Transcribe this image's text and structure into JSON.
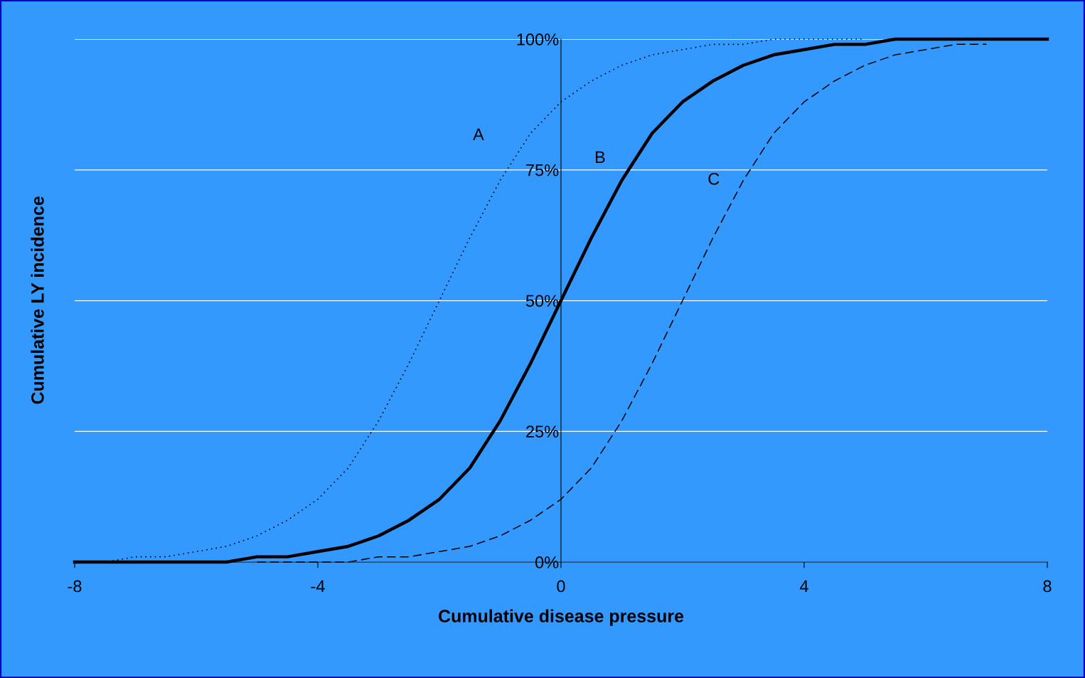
{
  "chart_data": {
    "type": "line",
    "xlabel": "Cumulative disease pressure",
    "ylabel": "Cumulative LY incidence",
    "x": [
      -8,
      -7.5,
      -7,
      -6.5,
      -6,
      -5.5,
      -5,
      -4.5,
      -4,
      -3.5,
      -3,
      -2.5,
      -2,
      -1.5,
      -1,
      -0.5,
      0,
      0.5,
      1,
      1.5,
      2,
      2.5,
      3,
      3.5,
      4,
      4.5,
      5,
      5.5,
      6,
      6.5,
      7,
      7.5,
      8
    ],
    "series": [
      {
        "name": "A",
        "color": "#000000",
        "line_style": "dotted",
        "values": [
          0,
          0,
          1,
          1,
          2,
          3,
          5,
          8,
          12,
          18,
          27,
          38,
          50,
          62,
          73,
          82,
          88,
          92,
          95,
          97,
          98,
          99,
          99,
          100,
          100,
          100,
          100,
          null,
          null,
          null,
          null,
          null,
          null
        ]
      },
      {
        "name": "B",
        "color": "#000000",
        "line_style": "solid",
        "values": [
          0,
          0,
          0,
          0,
          0,
          0,
          1,
          1,
          2,
          3,
          5,
          8,
          12,
          18,
          27,
          38,
          50,
          62,
          73,
          82,
          88,
          92,
          95,
          97,
          98,
          99,
          99,
          100,
          100,
          100,
          100,
          100,
          100
        ]
      },
      {
        "name": "C",
        "color": "#000000",
        "line_style": "dashed",
        "values": [
          null,
          null,
          null,
          null,
          null,
          null,
          0,
          0,
          0,
          0,
          1,
          1,
          2,
          3,
          5,
          8,
          12,
          18,
          27,
          38,
          50,
          62,
          73,
          82,
          88,
          92,
          95,
          97,
          98,
          99,
          99,
          null,
          null
        ]
      }
    ],
    "xlim": [
      -8,
      8
    ],
    "xticks": [
      -8,
      -4,
      0,
      4,
      8
    ],
    "ylim": [
      0,
      100
    ],
    "yticks": [
      {
        "value": 0,
        "label": "0%"
      },
      {
        "value": 25,
        "label": "25%"
      },
      {
        "value": 50,
        "label": "50%"
      },
      {
        "value": 75,
        "label": "75%"
      },
      {
        "value": 100,
        "label": "100%"
      }
    ],
    "grid": "y",
    "legend": false,
    "marker": "none"
  }
}
